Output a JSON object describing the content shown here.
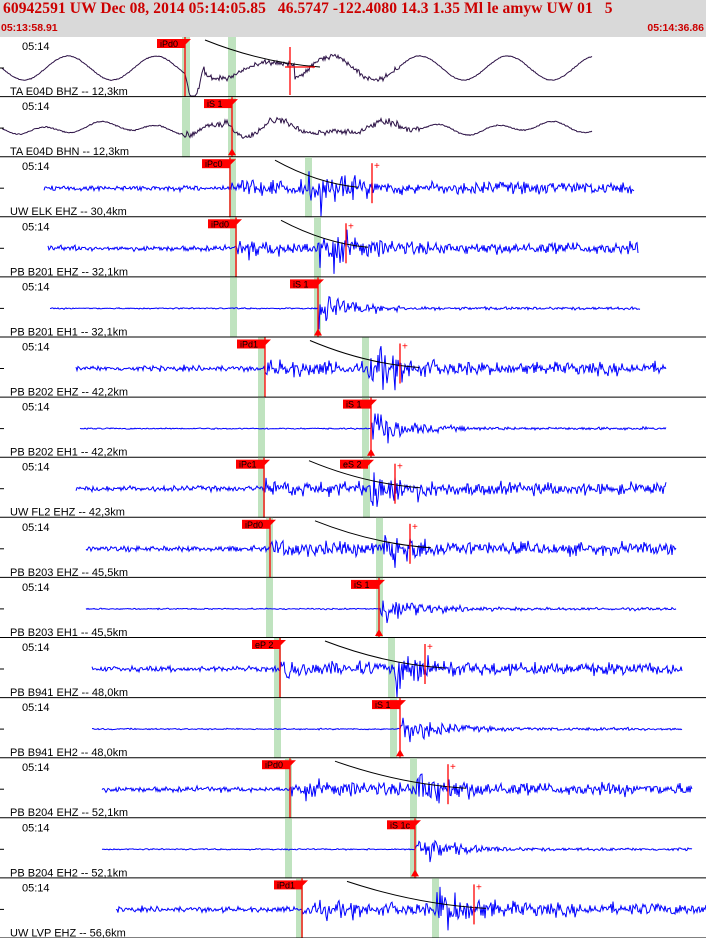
{
  "header": {
    "title": "60942591 UW Dec 08, 2014 05:14:05.85   46.5747 -122.4080 14.3 1.35 Ml le amyw UW 01   5",
    "time_start": "05:13:58.91",
    "time_end": "05:14:36.86"
  },
  "colors": {
    "header_bg": "#d9d9d9",
    "header_text": "#cc0000",
    "trace_dark": "#2b1045",
    "trace_blue": "#0000ff",
    "pick": "#ff0000",
    "window": "#bfe3bf",
    "theo_curve": "#000000"
  },
  "traces": [
    {
      "label": "TA E04D BHZ -- 12,3km",
      "time": "05:14",
      "color": "dark",
      "pick": {
        "label": "iPd0"
      },
      "s_pick": false
    },
    {
      "label": "TA E04D BHN -- 12,3km",
      "time": "05:14",
      "color": "dark",
      "pick": {
        "label": "iS 1"
      },
      "s_pick": true
    },
    {
      "label": "UW ELK EHZ -- 30,4km",
      "time": "05:14",
      "color": "blue",
      "pick": {
        "label": "iPc0"
      },
      "s_pick": false
    },
    {
      "label": "PB B201 EHZ -- 32,1km",
      "time": "05:14",
      "color": "blue",
      "pick": {
        "label": "iPd0"
      },
      "s_pick": false
    },
    {
      "label": "PB B201 EH1 -- 32,1km",
      "time": "05:14",
      "color": "blue",
      "pick": {
        "label": "iS 1"
      },
      "s_pick": true
    },
    {
      "label": "PB B202 EHZ -- 42,2km",
      "time": "05:14",
      "color": "blue",
      "pick": {
        "label": "iPd1"
      },
      "s_pick": false
    },
    {
      "label": "PB B202 EH1 -- 42,2km",
      "time": "05:14",
      "color": "blue",
      "pick": {
        "label": "iS 1"
      },
      "s_pick": true
    },
    {
      "label": "UW FL2 EHZ -- 42,3km",
      "time": "05:14",
      "color": "blue",
      "pick": {
        "label": "iPc1"
      },
      "s_pick": false,
      "extra_pick": {
        "label": "eS 2"
      }
    },
    {
      "label": "PB B203 EHZ -- 45,5km",
      "time": "05:14",
      "color": "blue",
      "pick": {
        "label": "iPd0"
      },
      "s_pick": false
    },
    {
      "label": "PB B203 EH1 -- 45,5km",
      "time": "05:14",
      "color": "blue",
      "pick": {
        "label": "iS 1"
      },
      "s_pick": true
    },
    {
      "label": "PB B941 EHZ -- 48,0km",
      "time": "05:14",
      "color": "blue",
      "pick": {
        "label": "eP 2"
      },
      "s_pick": false
    },
    {
      "label": "PB B941 EH2 -- 48,0km",
      "time": "05:14",
      "color": "blue",
      "pick": {
        "label": "iS 1"
      },
      "s_pick": true
    },
    {
      "label": "PB B204 EHZ -- 52,1km",
      "time": "05:14",
      "color": "blue",
      "pick": {
        "label": "iPd0"
      },
      "s_pick": false
    },
    {
      "label": "PB B204 EH2 -- 52,1km",
      "time": "05:14",
      "color": "blue",
      "pick": {
        "label": "iS 1c"
      },
      "s_pick": true
    },
    {
      "label": "UW LVP EHZ -- 56,6km",
      "time": "05:14",
      "color": "blue",
      "pick": {
        "label": "iPd1"
      },
      "s_pick": false
    }
  ]
}
